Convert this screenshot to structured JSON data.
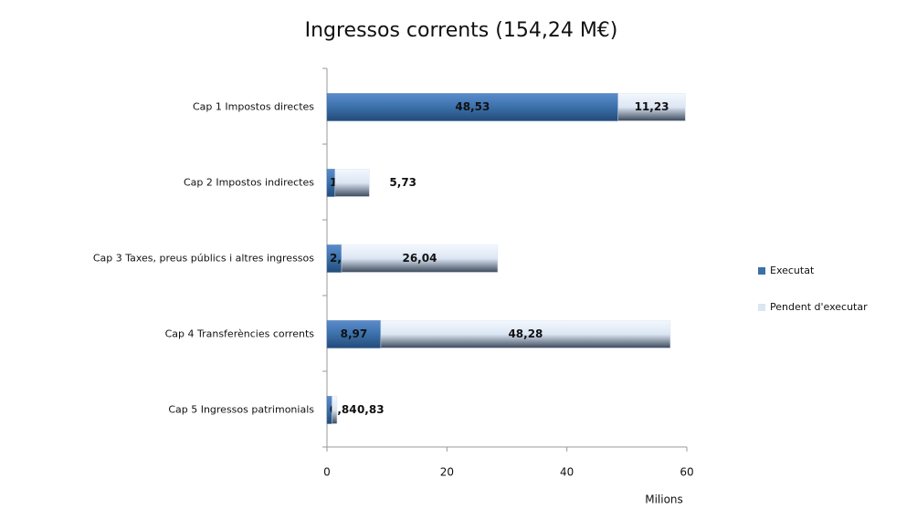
{
  "chart_data": {
    "type": "stacked_barh",
    "title": "Ingressos corrents (154,24 M€)",
    "x_label": "Milions",
    "categories": [
      "Cap 1 Impostos directes",
      "Cap 2 Impostos indirectes",
      "Cap 3 Taxes, preus públics i altres ingressos",
      "Cap 4 Transferències corrents",
      "Cap 5 Ingressos patrimonials"
    ],
    "series": [
      {
        "name": "Executat",
        "color": "#3b70aa",
        "values": [
          48.53,
          1.34,
          2.43,
          8.97,
          0.84
        ],
        "value_labels": [
          "48,53",
          "1,34",
          "2,43",
          "8,97",
          "0,84"
        ]
      },
      {
        "name": "Pendent d'executar",
        "color": "#dbe5f3",
        "values": [
          11.23,
          5.73,
          26.04,
          48.28,
          0.83
        ],
        "value_labels": [
          "11,23",
          "5,73",
          "26,04",
          "48,28",
          "0,83"
        ]
      }
    ],
    "xlim": [
      0,
      60
    ],
    "xticks": [
      0,
      20,
      40,
      60
    ],
    "legend": "right"
  }
}
